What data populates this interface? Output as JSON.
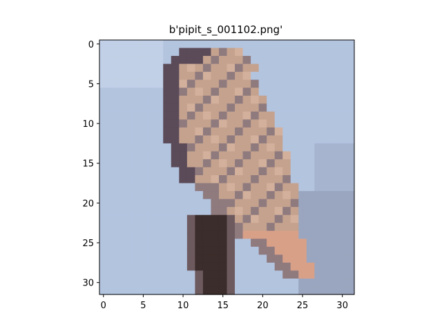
{
  "title": "b'pipit_s_001102.png'",
  "image": {
    "rows": 32,
    "cols": 32,
    "description_colors": {
      "sky": "#b3c4df",
      "sky_light": "#c2d0e7",
      "bird_body": "#c4a28e",
      "bird_light": "#d3b09b",
      "bird_shadow": "#8f7a7e",
      "bird_dark": "#5b4a58",
      "perch": "#3b2d2b",
      "perch_mid": "#6d5a5f",
      "tail": "#d9a088",
      "bg_gray": "#9aa6bf"
    }
  },
  "axes": {
    "x_ticks": [
      "0",
      "5",
      "10",
      "15",
      "20",
      "25",
      "30"
    ],
    "y_ticks": [
      "0",
      "5",
      "10",
      "15",
      "20",
      "25",
      "30"
    ],
    "x_tick_values": [
      0,
      5,
      10,
      15,
      20,
      25,
      30
    ],
    "y_tick_values": [
      0,
      5,
      10,
      15,
      20,
      25,
      30
    ],
    "xlim": [
      -0.5,
      31.5
    ],
    "ylim": [
      31.5,
      -0.5
    ]
  }
}
